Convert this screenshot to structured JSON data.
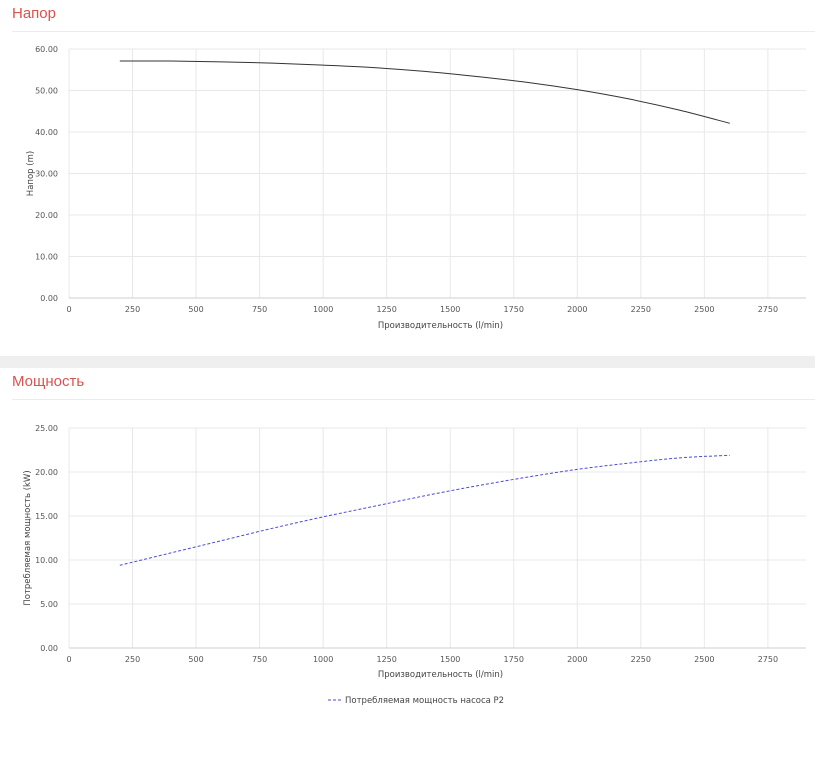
{
  "panels": [
    {
      "title": "Напор"
    },
    {
      "title": "Мощность"
    }
  ],
  "chart_data": [
    {
      "type": "line",
      "title": "Напор",
      "xlabel": "Производительность (l/min)",
      "ylabel": "Напор (m)",
      "xlim": [
        0,
        2900
      ],
      "ylim": [
        0,
        60
      ],
      "x_ticks": [
        0,
        250,
        500,
        750,
        1000,
        1250,
        1500,
        1750,
        2000,
        2250,
        2500,
        2750
      ],
      "x_tick_labels": [
        "0",
        "250",
        "500",
        "750",
        "1000",
        "1250",
        "1500",
        "1750",
        "2000",
        "2250",
        "2500",
        "2750"
      ],
      "y_ticks": [
        0,
        10,
        20,
        30,
        40,
        50,
        60
      ],
      "y_tick_labels": [
        "0.00",
        "10.00",
        "20.00",
        "30.00",
        "40.00",
        "50.00",
        "60.00"
      ],
      "grid": true,
      "series": [
        {
          "name": "",
          "color": "#333333",
          "dash": "solid",
          "x": [
            200,
            400,
            600,
            800,
            1000,
            1200,
            1400,
            1600,
            1800,
            2000,
            2200,
            2400,
            2600
          ],
          "y": [
            57.1,
            57.1,
            56.9,
            56.6,
            56.1,
            55.5,
            54.6,
            53.4,
            52.0,
            50.2,
            48.0,
            45.3,
            42.1
          ]
        }
      ]
    },
    {
      "type": "line",
      "title": "Мощность",
      "xlabel": "Производительность (l/min)",
      "ylabel": "Потребляемая мощность (kW)",
      "xlim": [
        0,
        2900
      ],
      "ylim": [
        0,
        25
      ],
      "x_ticks": [
        0,
        250,
        500,
        750,
        1000,
        1250,
        1500,
        1750,
        2000,
        2250,
        2500,
        2750
      ],
      "x_tick_labels": [
        "0",
        "250",
        "500",
        "750",
        "1000",
        "1250",
        "1500",
        "1750",
        "2000",
        "2250",
        "2500",
        "2750"
      ],
      "y_ticks": [
        0,
        5,
        10,
        15,
        20,
        25
      ],
      "y_tick_labels": [
        "0.00",
        "5.00",
        "10.00",
        "15.00",
        "20.00",
        "25.00"
      ],
      "grid": true,
      "legend": "bottom-center",
      "series": [
        {
          "name": "Потребляемая мощность насоса P2",
          "color": "#4a4ad8",
          "dash": "dashed",
          "x": [
            200,
            400,
            600,
            800,
            1000,
            1200,
            1400,
            1600,
            1800,
            2000,
            2200,
            2400,
            2600
          ],
          "y": [
            9.4,
            10.8,
            12.2,
            13.6,
            14.9,
            16.1,
            17.3,
            18.4,
            19.4,
            20.3,
            21.0,
            21.6,
            21.9
          ]
        }
      ]
    }
  ]
}
